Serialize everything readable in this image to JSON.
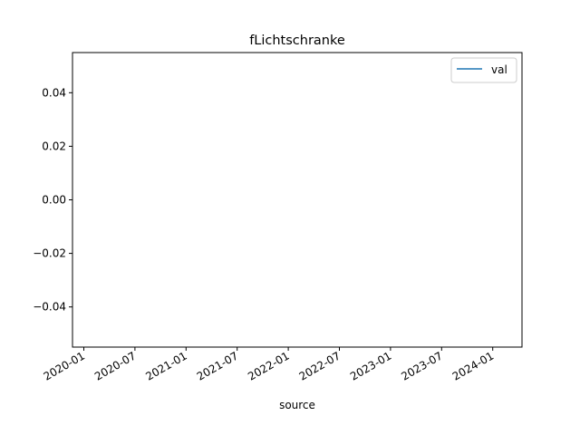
{
  "chart_data": {
    "type": "line",
    "title": "fLichtschranke",
    "xlabel": "source",
    "ylabel": "",
    "x_tick_labels": [
      "2020-01",
      "2020-07",
      "2021-01",
      "2021-07",
      "2022-01",
      "2022-07",
      "2023-01",
      "2023-07",
      "2024-01"
    ],
    "y_ticks": [
      -0.04,
      -0.02,
      0.0,
      0.02,
      0.04
    ],
    "y_tick_labels": [
      "−0.04",
      "−0.02",
      "0.00",
      "0.02",
      "0.04"
    ],
    "ylim": [
      -0.055,
      0.055
    ],
    "series": [
      {
        "name": "val",
        "x": [],
        "y": []
      }
    ],
    "legend": {
      "placement": "upper-right"
    },
    "grid": false,
    "colors": {
      "val": "#1f77b4"
    }
  }
}
